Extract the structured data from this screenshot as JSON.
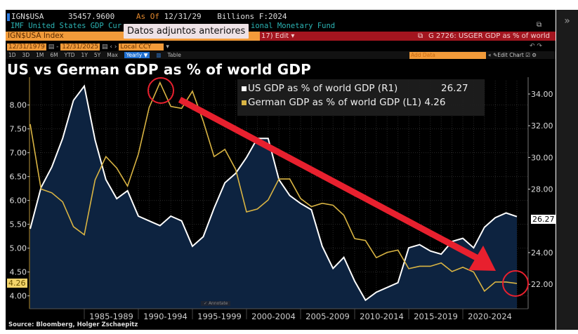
{
  "header": {
    "ticker": "IGN$USA",
    "price": "35457.9600",
    "as_of_label": "As Of",
    "as_of_date": "12/31/29",
    "units": "Billions F:2024",
    "description_left": "IMF United States GDP Cur",
    "description_right": "ional Monetary Fund",
    "security": "IGN$USA Index",
    "edit_label": "17) Edit ▾",
    "chart_id": "G 2726: USGER GDP as % of world",
    "start_date": "12/31/1979",
    "end_date": "12/31/2025",
    "currency": "Local CCY",
    "periods": [
      "1D",
      "3D",
      "1M",
      "6M",
      "YTD",
      "1Y",
      "5Y",
      "Max"
    ],
    "frequency": "Yearly ▼",
    "table_label": "Table",
    "add_data": "Add Data",
    "edit_chart": "Edit Chart",
    "tooltip": "Datos adjuntos anteriores"
  },
  "title": "US vs German GDP as % of world GDP",
  "annotate_label": "Annotate",
  "source": "Source: Bloomberg, Holger Zschaepitz",
  "colors": {
    "us": "#ffffff",
    "germany": "#d9b443",
    "area": "#0d2340",
    "arrow": "#e8202e",
    "background": "#000000"
  },
  "chart_data": {
    "type": "line",
    "title": "US vs German GDP as % of world GDP",
    "x": [
      1980,
      1981,
      1982,
      1983,
      1984,
      1985,
      1986,
      1987,
      1988,
      1989,
      1990,
      1991,
      1992,
      1993,
      1994,
      1995,
      1996,
      1997,
      1998,
      1999,
      2000,
      2001,
      2002,
      2003,
      2004,
      2005,
      2006,
      2007,
      2008,
      2009,
      2010,
      2011,
      2012,
      2013,
      2014,
      2015,
      2016,
      2017,
      2018,
      2019,
      2020,
      2021,
      2022,
      2023,
      2024,
      2025
    ],
    "x_tick_labels": [
      "1985-1989",
      "1990-1994",
      "1995-1999",
      "2000-2004",
      "2005-2009",
      "2010-2014",
      "2015-2019",
      "2020-2024"
    ],
    "series": [
      {
        "name": "US GDP as % of world GDP (R1)",
        "last": "26.27",
        "axis": "right",
        "style": "area",
        "values": [
          25.5,
          28.1,
          29.4,
          31.2,
          33.6,
          34.5,
          31.1,
          28.6,
          27.4,
          27.9,
          26.3,
          26.0,
          25.7,
          26.3,
          26.0,
          24.4,
          25.0,
          26.8,
          28.4,
          29.0,
          30.0,
          31.2,
          31.2,
          28.6,
          27.6,
          27.1,
          26.7,
          24.4,
          23.0,
          23.7,
          22.2,
          21.0,
          21.5,
          21.8,
          22.1,
          24.3,
          24.5,
          24.1,
          23.9,
          24.7,
          24.9,
          24.3,
          25.6,
          26.2,
          26.5,
          26.27
        ]
      },
      {
        "name": "German GDP as % of world GDP (L1)",
        "last": "4.26",
        "axis": "left",
        "style": "line",
        "values": [
          7.6,
          6.24,
          6.16,
          5.97,
          5.45,
          5.28,
          6.43,
          6.92,
          6.68,
          6.3,
          6.97,
          7.95,
          8.47,
          7.97,
          7.93,
          8.29,
          7.66,
          6.92,
          7.07,
          6.65,
          5.76,
          5.82,
          6.01,
          6.45,
          6.45,
          6.04,
          5.87,
          5.94,
          5.9,
          5.69,
          5.2,
          5.16,
          4.8,
          4.91,
          4.96,
          4.57,
          4.62,
          4.62,
          4.69,
          4.51,
          4.6,
          4.5,
          4.1,
          4.29,
          4.29,
          4.26
        ]
      }
    ],
    "left_axis": {
      "ticks": [
        "8.00",
        "7.50",
        "7.00",
        "6.50",
        "6.00",
        "5.50",
        "5.00",
        "4.50",
        "4.00"
      ],
      "range": [
        3.73,
        8.51
      ]
    },
    "right_axis": {
      "ticks": [
        "34.00",
        "32.00",
        "30.00",
        "28.00",
        "24.00",
        "22.00"
      ],
      "range": [
        20.46,
        34.84
      ]
    },
    "grid": true,
    "legend": "top-center"
  }
}
